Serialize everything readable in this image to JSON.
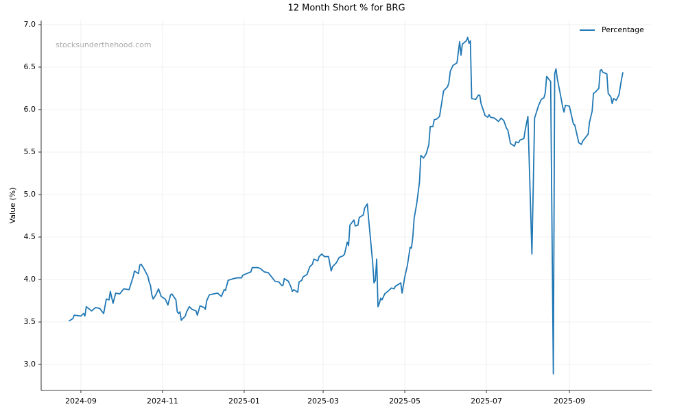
{
  "chart_data": {
    "type": "line",
    "title": "12 Month Short % for BRG",
    "ylabel": "Value (%)",
    "watermark": "stocksunderthehood.com",
    "legend": "upper right",
    "grid": true,
    "xlim": [
      -29.7,
      426.5
    ],
    "ylim": [
      2.694,
      7.048
    ],
    "xticks": [
      {
        "value": 0,
        "label": "2024-09"
      },
      {
        "value": 61,
        "label": "2024-11"
      },
      {
        "value": 122,
        "label": "2025-01"
      },
      {
        "value": 181,
        "label": "2025-03"
      },
      {
        "value": 242,
        "label": "2025-05"
      },
      {
        "value": 303,
        "label": "2025-07"
      },
      {
        "value": 365,
        "label": "2025-09"
      }
    ],
    "yticks": [
      {
        "value": 3,
        "label": "3.0"
      },
      3.5,
      {
        "value": 4,
        "label": "4.0"
      },
      4.5,
      {
        "value": 5,
        "label": "5.0"
      },
      5.5,
      {
        "value": 6,
        "label": "6.0"
      },
      6.5,
      {
        "value": 7,
        "label": "7.0"
      }
    ],
    "x": [
      -9,
      -6,
      -5,
      0,
      2,
      3,
      4,
      8,
      11,
      14,
      17,
      19,
      21,
      22,
      24,
      26,
      29,
      32,
      36,
      39,
      40,
      43,
      44,
      45,
      47,
      50,
      51,
      52,
      53,
      54,
      56,
      58,
      60,
      63,
      65,
      67,
      68,
      71,
      72,
      73,
      74,
      75,
      78,
      79,
      81,
      83,
      86,
      87,
      89,
      92,
      93,
      94,
      96,
      99,
      102,
      105,
      107,
      108,
      110,
      114,
      117,
      120,
      121,
      124,
      127,
      128,
      132,
      134,
      137,
      140,
      142,
      145,
      148,
      150,
      151,
      152,
      155,
      157,
      158,
      159,
      162,
      163,
      165,
      166,
      169,
      171,
      173,
      174,
      177,
      178,
      180,
      182,
      185,
      187,
      188,
      191,
      193,
      196,
      197,
      199,
      200,
      201,
      204,
      205,
      207,
      208,
      211,
      212,
      214,
      215,
      218,
      219,
      220,
      221,
      222,
      223,
      224,
      225,
      227,
      230,
      232,
      234,
      235,
      239,
      240,
      242,
      244,
      246,
      247,
      248,
      249,
      251,
      253,
      254,
      256,
      258,
      260,
      261,
      263,
      264,
      266,
      268,
      271,
      274,
      275,
      276,
      278,
      281,
      283,
      284,
      285,
      288,
      289,
      290,
      291,
      292,
      295,
      297,
      298,
      299,
      302,
      304,
      305,
      306,
      309,
      312,
      314,
      316,
      318,
      319,
      321,
      324,
      325,
      327,
      328,
      331,
      332,
      334,
      337,
      339,
      340,
      342,
      344,
      346,
      347,
      348,
      351,
      353,
      354,
      355,
      356,
      358,
      360,
      361,
      362,
      365,
      367,
      368,
      369,
      372,
      374,
      375,
      379,
      380,
      382,
      383,
      384,
      387,
      388,
      389,
      390,
      393,
      394,
      396,
      397,
      398,
      400,
      402,
      404,
      405
    ],
    "series": [
      {
        "name": "Percentage",
        "color": "#1f77b4",
        "values": [
          3.51,
          3.54,
          3.58,
          3.57,
          3.6,
          3.57,
          3.68,
          3.63,
          3.67,
          3.66,
          3.6,
          3.77,
          3.76,
          3.86,
          3.72,
          3.84,
          3.83,
          3.89,
          3.88,
          4.03,
          4.1,
          4.07,
          4.17,
          4.18,
          4.13,
          4.04,
          3.97,
          3.93,
          3.82,
          3.77,
          3.82,
          3.89,
          3.8,
          3.77,
          3.7,
          3.82,
          3.83,
          3.76,
          3.62,
          3.6,
          3.62,
          3.52,
          3.57,
          3.62,
          3.68,
          3.65,
          3.63,
          3.58,
          3.69,
          3.67,
          3.65,
          3.75,
          3.82,
          3.83,
          3.84,
          3.8,
          3.88,
          3.87,
          3.99,
          4.01,
          4.02,
          4.02,
          4.05,
          4.07,
          4.09,
          4.14,
          4.14,
          4.13,
          4.09,
          4.08,
          4.04,
          3.98,
          3.97,
          3.93,
          3.93,
          4.01,
          3.98,
          3.91,
          3.86,
          3.88,
          3.85,
          3.97,
          3.99,
          4.03,
          4.06,
          4.15,
          4.18,
          4.24,
          4.22,
          4.27,
          4.3,
          4.27,
          4.27,
          4.1,
          4.15,
          4.2,
          4.26,
          4.28,
          4.3,
          4.44,
          4.4,
          4.64,
          4.7,
          4.63,
          4.64,
          4.73,
          4.76,
          4.84,
          4.89,
          4.71,
          4.2,
          3.96,
          3.99,
          4.24,
          3.68,
          3.72,
          3.78,
          3.76,
          3.83,
          3.87,
          3.9,
          3.89,
          3.92,
          3.96,
          3.84,
          4.03,
          4.17,
          4.38,
          4.37,
          4.5,
          4.72,
          4.9,
          5.15,
          5.46,
          5.43,
          5.48,
          5.59,
          5.8,
          5.8,
          5.88,
          5.89,
          5.92,
          6.22,
          6.27,
          6.32,
          6.45,
          6.52,
          6.55,
          6.8,
          6.64,
          6.77,
          6.81,
          6.85,
          6.78,
          6.81,
          6.13,
          6.12,
          6.17,
          6.17,
          6.07,
          5.93,
          5.91,
          5.94,
          5.91,
          5.9,
          5.86,
          5.9,
          5.87,
          5.78,
          5.76,
          5.6,
          5.57,
          5.62,
          5.61,
          5.64,
          5.66,
          5.76,
          5.92,
          4.3,
          5.9,
          5.95,
          6.05,
          6.12,
          6.14,
          6.2,
          6.39,
          6.33,
          2.89,
          6.42,
          6.48,
          6.36,
          6.2,
          6.03,
          5.97,
          6.05,
          6.04,
          5.9,
          5.83,
          5.82,
          5.61,
          5.59,
          5.63,
          5.71,
          5.85,
          5.98,
          6.19,
          6.2,
          6.25,
          6.46,
          6.47,
          6.44,
          6.42,
          6.19,
          6.15,
          6.07,
          6.13,
          6.11,
          6.17,
          6.36,
          6.44
        ]
      }
    ]
  }
}
